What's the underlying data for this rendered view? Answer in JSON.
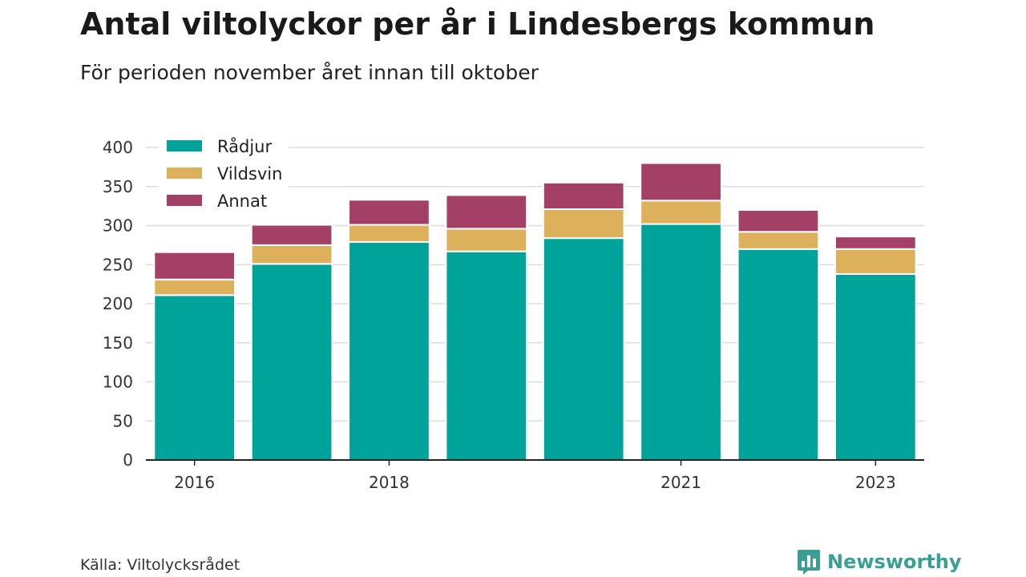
{
  "title": "Antal viltolyckor per år i Lindesbergs kommun",
  "subtitle": "För perioden november året innan till oktober",
  "source": "Källa: Viltolycksrådet",
  "brand": {
    "name": "Newsworthy",
    "icon": "bar-chart-bubble-icon",
    "color": "#3a9e95"
  },
  "chart_data": {
    "type": "bar",
    "stacked": true,
    "categories": [
      "2016",
      "2017",
      "2018",
      "2019",
      "2020",
      "2021",
      "2022",
      "2023"
    ],
    "x_tick_labels": [
      "2016",
      "",
      "2018",
      "",
      "",
      "2021",
      "",
      "2023"
    ],
    "series": [
      {
        "name": "Rådjur",
        "color": "#00a39a",
        "values": [
          211,
          251,
          279,
          267,
          284,
          302,
          270,
          238
        ]
      },
      {
        "name": "Vildsvin",
        "color": "#ddb05c",
        "values": [
          20,
          24,
          22,
          29,
          37,
          30,
          22,
          32
        ]
      },
      {
        "name": "Annat",
        "color": "#a44066",
        "values": [
          35,
          26,
          32,
          43,
          34,
          48,
          28,
          16
        ]
      }
    ],
    "ylim": [
      0,
      400
    ],
    "yticks": [
      0,
      50,
      100,
      150,
      200,
      250,
      300,
      350,
      400
    ],
    "grid": true,
    "legend_position": "top-left"
  }
}
